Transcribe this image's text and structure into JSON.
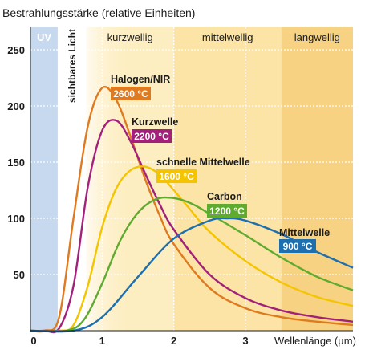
{
  "chart_data": {
    "type": "line",
    "ylabel": "Bestrahlungsstärke (relative Einheiten)",
    "xlabel": "Wellenlänge (µm)",
    "xlim": [
      0,
      4.5
    ],
    "ylim": [
      0,
      270
    ],
    "x_ticks": [
      0,
      1,
      2,
      3
    ],
    "y_ticks": [
      50,
      100,
      150,
      200,
      250
    ],
    "grid": true,
    "regions": [
      {
        "label": "UV",
        "from": 0.0,
        "to": 0.38,
        "color": "#c7d9ef"
      },
      {
        "label": "sichtbares Licht",
        "from": 0.38,
        "to": 0.78,
        "color": "#ffffff"
      },
      {
        "label": "kurzwellig",
        "from": 0.78,
        "to": 2.0,
        "color": "#fdeec2"
      },
      {
        "label": "mittelwellig",
        "from": 2.0,
        "to": 3.5,
        "color": "#fbe4a6"
      },
      {
        "label": "langwellig",
        "from": 3.5,
        "to": 4.5,
        "color": "#f7d282"
      }
    ],
    "series": [
      {
        "name": "Halogen/NIR",
        "temp": "2600 °C",
        "color": "#e07a1f",
        "x": [
          0.2,
          0.4,
          0.6,
          0.8,
          1.0,
          1.2,
          1.4,
          1.6,
          1.8,
          2.0,
          2.5,
          3.0,
          3.5,
          4.0,
          4.5
        ],
        "y": [
          0,
          12,
          100,
          182,
          216,
          205,
          172,
          135,
          103,
          77,
          38,
          20,
          12,
          8,
          5
        ]
      },
      {
        "name": "Kurzwelle",
        "temp": "2200 °C",
        "color": "#a3217a",
        "x": [
          0.2,
          0.4,
          0.6,
          0.8,
          1.0,
          1.2,
          1.4,
          1.6,
          1.8,
          2.0,
          2.5,
          3.0,
          3.5,
          4.0,
          4.5
        ],
        "y": [
          0,
          2,
          40,
          128,
          178,
          187,
          168,
          140,
          113,
          90,
          50,
          29,
          18,
          12,
          8
        ]
      },
      {
        "name": "schnelle Mittelwelle",
        "temp": "1600 °C",
        "color": "#f5c400",
        "x": [
          0.4,
          0.6,
          0.8,
          1.0,
          1.2,
          1.4,
          1.6,
          1.8,
          2.0,
          2.2,
          2.5,
          3.0,
          3.5,
          4.0,
          4.5
        ],
        "y": [
          0,
          5,
          40,
          92,
          127,
          143,
          146,
          139,
          125,
          110,
          88,
          62,
          43,
          30,
          22
        ]
      },
      {
        "name": "Carbon",
        "temp": "1200 °C",
        "color": "#5fab2f",
        "x": [
          0.5,
          0.75,
          1.0,
          1.25,
          1.5,
          1.75,
          2.0,
          2.25,
          2.5,
          3.0,
          3.5,
          4.0,
          4.5
        ],
        "y": [
          0,
          10,
          42,
          80,
          105,
          117,
          118,
          113,
          104,
          85,
          65,
          48,
          36
        ]
      },
      {
        "name": "Mittelwelle",
        "temp": "900 °C",
        "color": "#1d6fb0",
        "x": [
          0.6,
          1.0,
          1.5,
          2.0,
          2.5,
          2.75,
          3.0,
          3.5,
          4.0,
          4.5
        ],
        "y": [
          0,
          12,
          48,
          82,
          98,
          100,
          98,
          86,
          70,
          56
        ]
      }
    ]
  }
}
